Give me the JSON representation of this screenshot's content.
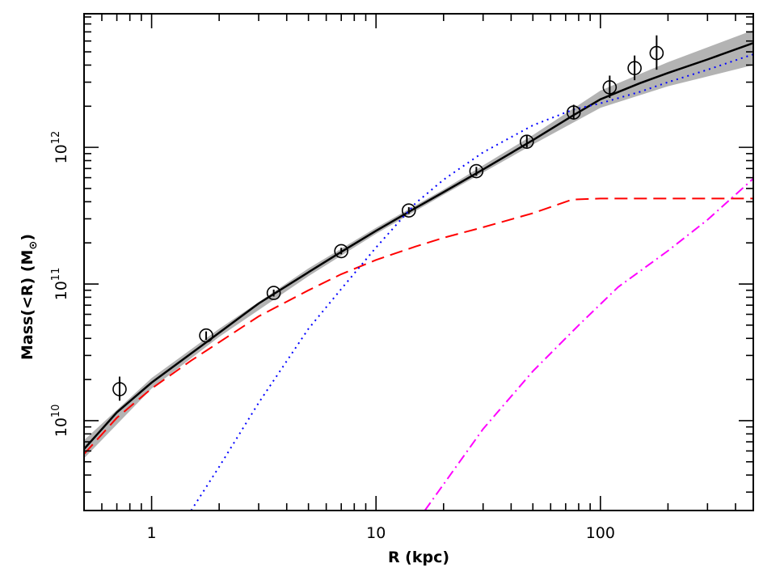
{
  "chart_data": {
    "type": "line",
    "xlabel": "R (kpc)",
    "ylabel": "Mass(<R) (M",
    "ylabel_unit_symbol": "⊙",
    "ylabel_close": ")",
    "x_scale": "log",
    "y_scale": "log",
    "xlim": [
      0.5,
      480
    ],
    "ylim": [
      2200000000.0,
      9500000000000.0
    ],
    "x_tick_labels": [
      {
        "value": 1,
        "label": "1"
      },
      {
        "value": 10,
        "label": "10"
      },
      {
        "value": 100,
        "label": "100"
      }
    ],
    "y_tick_labels": [
      {
        "value": 10000000000.0,
        "base": "10",
        "exp": "10"
      },
      {
        "value": 100000000000.0,
        "base": "10",
        "exp": "11"
      },
      {
        "value": 1000000000000.0,
        "base": "10",
        "exp": "12"
      }
    ],
    "grid": false,
    "legend": "none",
    "series": [
      {
        "style": "solid",
        "color": "#000000",
        "x": [
          0.5,
          0.7,
          1,
          1.5,
          2,
          3,
          5,
          7,
          10,
          15,
          20,
          30,
          50,
          75,
          100,
          150,
          200,
          300,
          480
        ],
        "y": [
          6200000000.0,
          11500000000.0,
          19000000000.0,
          31000000000.0,
          44000000000.0,
          72000000000.0,
          122000000000.0,
          172000000000.0,
          245000000000.0,
          360000000000.0,
          470000000000.0,
          690000000000.0,
          1130000000000.0,
          1700000000000.0,
          2250000000000.0,
          2950000000000.0,
          3500000000000.0,
          4400000000000.0,
          5800000000000.0
        ]
      },
      {
        "style": "dashed",
        "color": "#ff0000",
        "x": [
          0.5,
          0.7,
          1,
          1.5,
          2,
          3,
          5,
          7,
          10,
          15,
          20,
          30,
          50,
          75,
          100,
          150,
          200,
          300,
          480
        ],
        "y": [
          5700000000.0,
          10500000000.0,
          17200000000.0,
          27500000000.0,
          37500000000.0,
          58000000000.0,
          90000000000.0,
          118000000000.0,
          150000000000.0,
          188000000000.0,
          218000000000.0,
          260000000000.0,
          330000000000.0,
          415000000000.0,
          422000000000.0,
          422000000000.0,
          422000000000.0,
          422000000000.0,
          422000000000.0
        ]
      },
      {
        "style": "dotted",
        "color": "#0000ff",
        "x": [
          1.5,
          2,
          3,
          5,
          7,
          10,
          15,
          20,
          30,
          50,
          75,
          100,
          150,
          200,
          300,
          480
        ],
        "y": [
          2200000000.0,
          4600000000.0,
          13500000000.0,
          47000000000.0,
          92000000000.0,
          185000000000.0,
          390000000000.0,
          580000000000.0,
          920000000000.0,
          1450000000000.0,
          1880000000000.0,
          2100000000000.0,
          2550000000000.0,
          3000000000000.0,
          3700000000000.0,
          4800000000000.0
        ]
      },
      {
        "style": "dashdot",
        "color": "#ff00ff",
        "x": [
          16.5,
          30,
          50,
          80,
          120,
          200,
          300,
          480
        ],
        "y": [
          2200000000.0,
          8700000000.0,
          23000000000.0,
          50000000000.0,
          95000000000.0,
          175000000000.0,
          295000000000.0,
          590000000000.0
        ]
      }
    ],
    "uncertainty_band": {
      "color": "#b3b3b3",
      "x": [
        0.5,
        1,
        2,
        5,
        10,
        20,
        50,
        100,
        200,
        480
      ],
      "y_low": [
        5300000000.0,
        17200000000.0,
        41000000000.0,
        114000000000.0,
        233000000000.0,
        450000000000.0,
        1050000000000.0,
        1950000000000.0,
        2800000000000.0,
        4000000000000.0
      ],
      "y_high": [
        7200000000.0,
        20500000000.0,
        47000000000.0,
        130000000000.0,
        258000000000.0,
        492000000000.0,
        1230000000000.0,
        2600000000000.0,
        4200000000000.0,
        7200000000000.0
      ]
    },
    "data_points": [
      {
        "x": 0.72,
        "y": 17000000000.0,
        "y_low": 14000000000.0,
        "y_high": 21000000000.0
      },
      {
        "x": 1.75,
        "y": 42000000000.0,
        "y_low": 39000000000.0,
        "y_high": 45000000000.0
      },
      {
        "x": 3.5,
        "y": 86000000000.0,
        "y_low": 81000000000.0,
        "y_high": 91000000000.0
      },
      {
        "x": 7.0,
        "y": 174000000000.0,
        "y_low": 165000000000.0,
        "y_high": 184000000000.0
      },
      {
        "x": 14.0,
        "y": 345000000000.0,
        "y_low": 326000000000.0,
        "y_high": 365000000000.0
      },
      {
        "x": 28.0,
        "y": 670000000000.0,
        "y_low": 620000000000.0,
        "y_high": 720000000000.0
      },
      {
        "x": 47.0,
        "y": 1100000000000.0,
        "y_low": 1000000000000.0,
        "y_high": 1220000000000.0
      },
      {
        "x": 76.0,
        "y": 1800000000000.0,
        "y_low": 1600000000000.0,
        "y_high": 2050000000000.0
      },
      {
        "x": 110.0,
        "y": 2750000000000.0,
        "y_low": 2300000000000.0,
        "y_high": 3350000000000.0
      },
      {
        "x": 142.0,
        "y": 3800000000000.0,
        "y_low": 3100000000000.0,
        "y_high": 4700000000000.0
      },
      {
        "x": 178.0,
        "y": 4900000000000.0,
        "y_low": 3700000000000.0,
        "y_high": 6600000000000.0
      }
    ]
  }
}
